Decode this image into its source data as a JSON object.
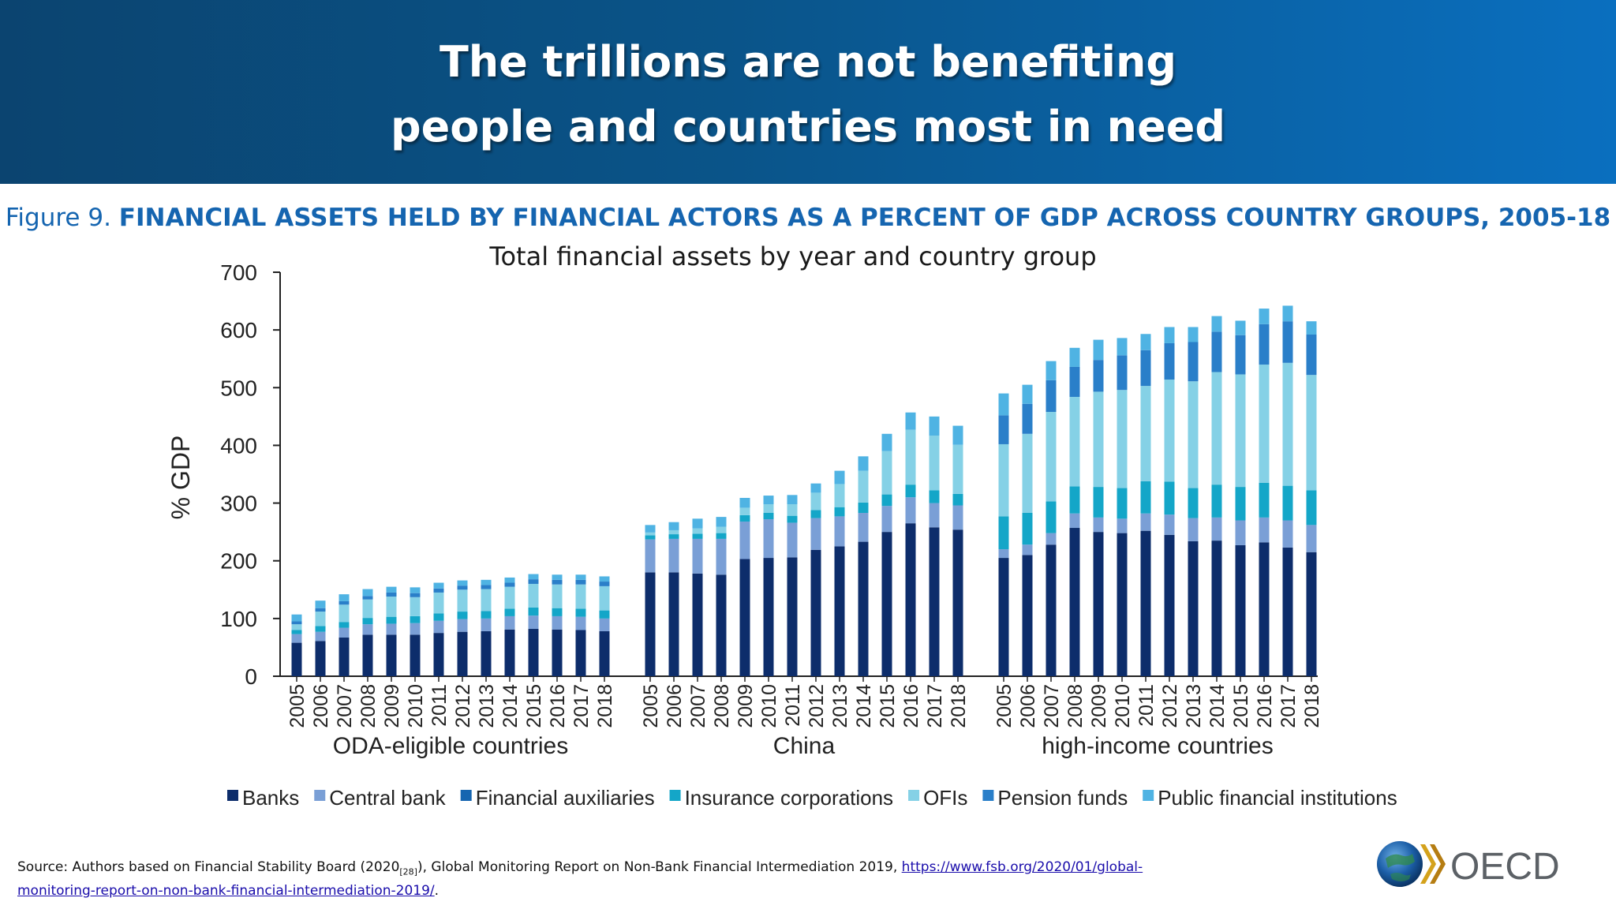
{
  "header": {
    "title_line1": "The trillions are not benefiting",
    "title_line2": "people and countries most in need"
  },
  "figure": {
    "number": "Figure 9.",
    "heading": "FINANCIAL ASSETS HELD BY FINANCIAL ACTORS AS A PERCENT OF GDP ACROSS COUNTRY GROUPS, 2005-18"
  },
  "chart_data": {
    "type": "bar",
    "stacked": true,
    "title": "Total financial assets by year and country group",
    "ylabel": "% GDP",
    "ylim": [
      0,
      700
    ],
    "yticks": [
      0,
      100,
      200,
      300,
      400,
      500,
      600,
      700
    ],
    "grid": false,
    "legend_position": "bottom",
    "years": [
      "2005",
      "2006",
      "2007",
      "2008",
      "2009",
      "2010",
      "2011",
      "2012",
      "2013",
      "2014",
      "2015",
      "2016",
      "2017",
      "2018"
    ],
    "series": [
      {
        "name": "Banks",
        "color": "#0d2d6b"
      },
      {
        "name": "Central bank",
        "color": "#7a9fd6"
      },
      {
        "name": "Financial auxiliaries",
        "color": "#1565b0"
      },
      {
        "name": "Insurance corporations",
        "color": "#14a6c8"
      },
      {
        "name": "OFIs",
        "color": "#85d1e6"
      },
      {
        "name": "Pension funds",
        "color": "#2a7fc9"
      },
      {
        "name": "Public financial institutions",
        "color": "#4fb3e3"
      }
    ],
    "groups": [
      {
        "name": "ODA-eligible countries",
        "values": [
          [
            58,
            61,
            67,
            72,
            72,
            72,
            75,
            77,
            78,
            81,
            82,
            81,
            80,
            78
          ],
          [
            15,
            16,
            17,
            18,
            19,
            20,
            21,
            22,
            22,
            23,
            23,
            23,
            23,
            22
          ],
          [
            0,
            0,
            0,
            0,
            0,
            0,
            0,
            0,
            0,
            0,
            0,
            0,
            0,
            0
          ],
          [
            7,
            10,
            10,
            11,
            12,
            12,
            13,
            13,
            13,
            13,
            14,
            14,
            14,
            14
          ],
          [
            10,
            25,
            30,
            32,
            35,
            33,
            36,
            38,
            38,
            38,
            41,
            41,
            42,
            42
          ],
          [
            5,
            6,
            6,
            6,
            7,
            7,
            7,
            7,
            7,
            7,
            8,
            8,
            8,
            8
          ],
          [
            12,
            13,
            12,
            12,
            10,
            10,
            10,
            9,
            9,
            9,
            9,
            9,
            9,
            9
          ]
        ]
      },
      {
        "name": "China",
        "values": [
          [
            180,
            180,
            178,
            176,
            203,
            205,
            206,
            219,
            225,
            233,
            250,
            265,
            258,
            254
          ],
          [
            57,
            58,
            60,
            62,
            65,
            67,
            60,
            55,
            52,
            50,
            45,
            45,
            42,
            42
          ],
          [
            0,
            0,
            0,
            0,
            0,
            0,
            0,
            0,
            0,
            0,
            0,
            0,
            0,
            0
          ],
          [
            7,
            8,
            9,
            10,
            11,
            11,
            12,
            14,
            16,
            18,
            20,
            22,
            22,
            20
          ],
          [
            5,
            7,
            9,
            11,
            13,
            15,
            20,
            30,
            40,
            55,
            75,
            95,
            95,
            85
          ],
          [
            0,
            0,
            0,
            0,
            0,
            0,
            0,
            0,
            0,
            0,
            0,
            0,
            0,
            0
          ],
          [
            13,
            14,
            17,
            17,
            17,
            15,
            16,
            16,
            23,
            25,
            30,
            30,
            33,
            33
          ]
        ]
      },
      {
        "name": "high-income countries",
        "values": [
          [
            205,
            210,
            228,
            257,
            250,
            248,
            252,
            245,
            234,
            235,
            227,
            232,
            223,
            215
          ],
          [
            15,
            18,
            20,
            25,
            25,
            25,
            30,
            35,
            40,
            40,
            43,
            43,
            47,
            47
          ],
          [
            0,
            0,
            0,
            0,
            0,
            0,
            0,
            0,
            0,
            0,
            0,
            0,
            0,
            0
          ],
          [
            57,
            55,
            55,
            47,
            53,
            53,
            56,
            57,
            52,
            57,
            58,
            60,
            60,
            60
          ],
          [
            125,
            137,
            155,
            155,
            165,
            170,
            165,
            177,
            185,
            195,
            195,
            205,
            213,
            200
          ],
          [
            50,
            52,
            55,
            52,
            55,
            60,
            62,
            63,
            68,
            70,
            68,
            70,
            72,
            70
          ],
          [
            38,
            33,
            33,
            33,
            35,
            30,
            28,
            28,
            26,
            27,
            25,
            27,
            27,
            23
          ]
        ]
      }
    ]
  },
  "source": {
    "prefix": "Source: Authors based on Financial Stability Board (2020",
    "ref": "[28]",
    "middle": "), Global Monitoring Report on Non-Bank Financial Intermediation 2019, ",
    "link": "https://www.fsb.org/2020/01/global-monitoring-report-on-non-bank-financial-intermediation-2019/",
    "suffix": "."
  },
  "logo": {
    "text": "OECD",
    "icon": "oecd-globe-icon"
  }
}
